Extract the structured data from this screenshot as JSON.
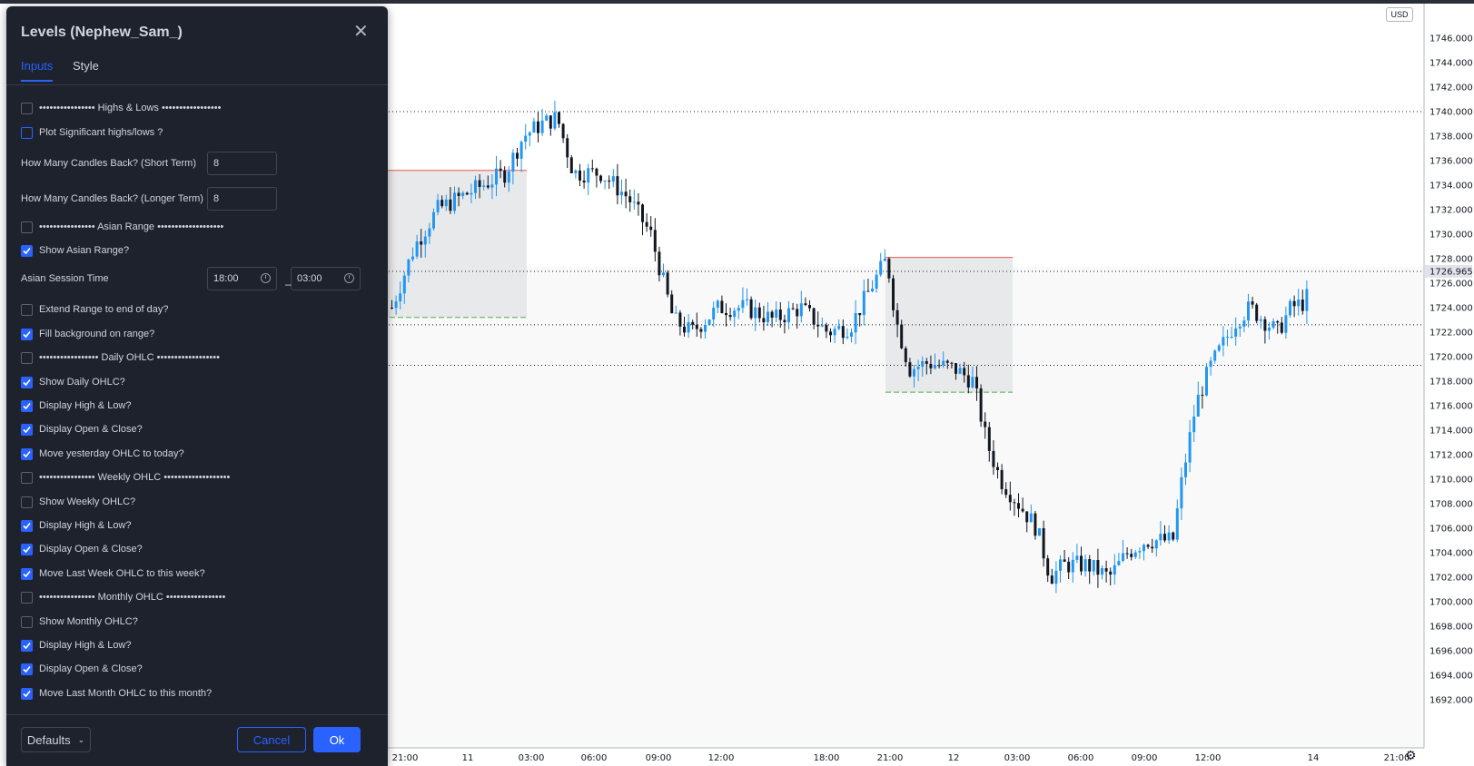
{
  "dialog": {
    "title": "Levels (Nephew_Sam_)",
    "tabs": [
      "Inputs",
      "Style"
    ],
    "rows": [
      {
        "type": "checkbox",
        "label": "•••••••••••••••• Highs & Lows •••••••••••••••••",
        "checked": false
      },
      {
        "type": "checkbox",
        "label": "Plot Significant highs/lows ?",
        "checked": false
      },
      {
        "type": "number",
        "label": "How Many Candles Back? (Short Term)",
        "value": "8"
      },
      {
        "type": "number",
        "label": "How Many Candles Back? (Longer Term)",
        "value": "8"
      },
      {
        "type": "checkbox",
        "label": "•••••••••••••••• Asian Range •••••••••••••••••••",
        "checked": false
      },
      {
        "type": "checkbox",
        "label": "Show Asian Range?",
        "checked": true
      },
      {
        "type": "session",
        "label": "Asian Session Time",
        "start": "18:00",
        "end": "03:00"
      },
      {
        "type": "checkbox",
        "label": "Extend Range to end of day?",
        "checked": false
      },
      {
        "type": "checkbox",
        "label": "Fill background on range?",
        "checked": true
      },
      {
        "type": "checkbox",
        "label": "••••••••••••••••• Daily OHLC ••••••••••••••••••",
        "checked": false
      },
      {
        "type": "checkbox",
        "label": "Show Daily OHLC?",
        "checked": true
      },
      {
        "type": "checkbox",
        "label": "Display High & Low?",
        "checked": true
      },
      {
        "type": "checkbox",
        "label": "Display Open & Close?",
        "checked": true
      },
      {
        "type": "checkbox",
        "label": "Move yesterday OHLC to today?",
        "checked": true
      },
      {
        "type": "checkbox",
        "label": "•••••••••••••••• Weekly OHLC •••••••••••••••••••",
        "checked": false
      },
      {
        "type": "checkbox",
        "label": "Show Weekly OHLC?",
        "checked": false
      },
      {
        "type": "checkbox",
        "label": "Display High & Low?",
        "checked": true
      },
      {
        "type": "checkbox",
        "label": "Display Open & Close?",
        "checked": true
      },
      {
        "type": "checkbox",
        "label": "Move Last Week OHLC to this week?",
        "checked": true
      },
      {
        "type": "checkbox",
        "label": "•••••••••••••••• Monthly OHLC •••••••••••••••••",
        "checked": false
      },
      {
        "type": "checkbox",
        "label": "Show Monthly OHLC?",
        "checked": false
      },
      {
        "type": "checkbox",
        "label": "Display High & Low?",
        "checked": true
      },
      {
        "type": "checkbox",
        "label": "Display Open & Close?",
        "checked": true
      },
      {
        "type": "checkbox",
        "label": "Move Last Month OHLC to this month?",
        "checked": true
      }
    ],
    "footer": {
      "defaults": "Defaults",
      "cancel": "Cancel",
      "ok": "Ok"
    }
  },
  "chart": {
    "currency": "USD",
    "price_labels": [
      "1746.000",
      "1744.000",
      "1742.000",
      "1740.000",
      "1738.000",
      "1736.000",
      "1734.000",
      "1732.000",
      "1730.000",
      "1728.000",
      "1726.000",
      "1724.000",
      "1722.000",
      "1720.000",
      "1718.000",
      "1716.000",
      "1714.000",
      "1712.000",
      "1710.000",
      "1708.000",
      "1706.000",
      "1704.000",
      "1702.000",
      "1700.000",
      "1698.000",
      "1696.000",
      "1694.000",
      "1692.000"
    ],
    "current_price": "1726.965",
    "time_labels": [
      "21:00",
      "11",
      "03:00",
      "06:00",
      "09:00",
      "12:00",
      "18:00",
      "21:00",
      "12",
      "03:00",
      "06:00",
      "09:00",
      "12:00",
      "14",
      "21:00"
    ],
    "horizontal_levels": [
      1740.0,
      1726.965,
      1722.6,
      1719.3
    ],
    "colors": {
      "up": "#2196f3",
      "down": "#131722",
      "range_fill": "#e8e9ea",
      "range_high": "#ef5350",
      "range_low": "#4caf50",
      "accent": "#2962ff"
    }
  }
}
